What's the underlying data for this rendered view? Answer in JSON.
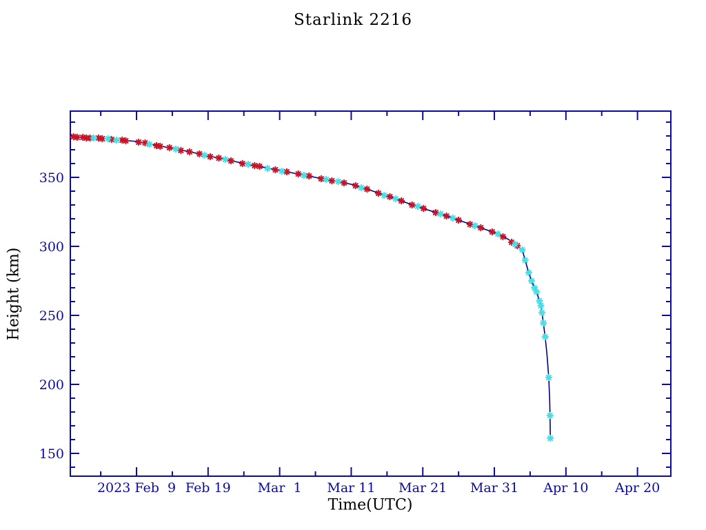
{
  "chart_data": {
    "type": "line",
    "title": "Starlink 2216",
    "xlabel": "Time(UTC)",
    "ylabel": "Height (km)",
    "x_unit": "days since 2023 Feb 9 00:00 UTC",
    "xlim": [
      -9.25,
      74.66
    ],
    "ylim": [
      133.5,
      398
    ],
    "grid": false,
    "legend": "none",
    "x_major_ticks": [
      {
        "value": 0,
        "label": "2023 Feb  9"
      },
      {
        "value": 10,
        "label": "Feb 19"
      },
      {
        "value": 20,
        "label": "Mar  1"
      },
      {
        "value": 30,
        "label": "Mar 11"
      },
      {
        "value": 40,
        "label": "Mar 21"
      },
      {
        "value": 50,
        "label": "Mar 31"
      },
      {
        "value": 60,
        "label": "Apr 10"
      },
      {
        "value": 70,
        "label": "Apr 20"
      }
    ],
    "x_minor_ticks": [
      -5,
      5,
      15,
      25,
      35,
      45,
      55,
      65
    ],
    "y_major_ticks": [
      {
        "value": 150,
        "label": "150"
      },
      {
        "value": 200,
        "label": "200"
      },
      {
        "value": 250,
        "label": "250"
      },
      {
        "value": 300,
        "label": "300"
      },
      {
        "value": 350,
        "label": "350"
      }
    ],
    "y_minor_ticks": [
      140,
      160,
      170,
      180,
      190,
      210,
      220,
      230,
      240,
      260,
      270,
      280,
      290,
      310,
      320,
      330,
      340,
      360,
      370,
      380,
      390
    ],
    "colors": {
      "axis": "#0a0aa0",
      "text": "#0a0aa0",
      "line": "#00007d",
      "red_marker": "#c81328",
      "cyan_marker": "#48dfe8",
      "background": "#ffffff"
    },
    "series": [
      {
        "name": "decay-curve",
        "style": "line",
        "color_key": "line",
        "points": [
          [
            -9.25,
            379.5
          ],
          [
            -7,
            379
          ],
          [
            -4.5,
            378
          ],
          [
            -2,
            377
          ],
          [
            0,
            376
          ],
          [
            2.5,
            373.5
          ],
          [
            5,
            371
          ],
          [
            7.5,
            368.5
          ],
          [
            10,
            365.5
          ],
          [
            12.5,
            363
          ],
          [
            15,
            360
          ],
          [
            17.5,
            357.5
          ],
          [
            20,
            355
          ],
          [
            22.5,
            352.5
          ],
          [
            25,
            350
          ],
          [
            27.5,
            347.5
          ],
          [
            30,
            345
          ],
          [
            32.5,
            341
          ],
          [
            35,
            336.5
          ],
          [
            37.5,
            332
          ],
          [
            40,
            327.5
          ],
          [
            42.5,
            323.5
          ],
          [
            45,
            319
          ],
          [
            47.5,
            314.5
          ],
          [
            50,
            310
          ],
          [
            52,
            305
          ],
          [
            53.9,
            297.5
          ],
          [
            54.3,
            290
          ],
          [
            54.8,
            281
          ],
          [
            55.2,
            275
          ],
          [
            55.6,
            270
          ],
          [
            55.9,
            267
          ],
          [
            56.3,
            260.5
          ],
          [
            56.5,
            257
          ],
          [
            56.65,
            252
          ],
          [
            56.85,
            244.5
          ],
          [
            57.1,
            234.5
          ],
          [
            57.35,
            222
          ],
          [
            57.6,
            205
          ],
          [
            57.72,
            190
          ],
          [
            57.78,
            177.5
          ],
          [
            57.82,
            161
          ]
        ]
      },
      {
        "name": "observations-red",
        "style": "asterisk",
        "color_key": "red_marker",
        "points": [
          [
            -8.8,
            379.5
          ],
          [
            -8.3,
            379
          ],
          [
            -7.5,
            379
          ],
          [
            -7.0,
            378.5
          ],
          [
            -6.5,
            378.5
          ],
          [
            -5.3,
            378.5
          ],
          [
            -4.8,
            378
          ],
          [
            -3.5,
            377.5
          ],
          [
            -2.0,
            377
          ],
          [
            -1.5,
            376.5
          ],
          [
            0.3,
            375.5
          ],
          [
            1.2,
            375
          ],
          [
            2.8,
            373
          ],
          [
            3.3,
            372.5
          ],
          [
            4.6,
            371.5
          ],
          [
            6.2,
            369.5
          ],
          [
            7.4,
            368.5
          ],
          [
            8.8,
            367
          ],
          [
            10.3,
            365
          ],
          [
            11.5,
            364
          ],
          [
            13.2,
            362
          ],
          [
            14.8,
            360
          ],
          [
            16.5,
            358.5
          ],
          [
            17.2,
            358
          ],
          [
            19.4,
            355.5
          ],
          [
            21.0,
            354
          ],
          [
            22.6,
            352.5
          ],
          [
            24.1,
            351
          ],
          [
            25.8,
            349
          ],
          [
            27.3,
            347.5
          ],
          [
            29.0,
            346
          ],
          [
            30.6,
            344
          ],
          [
            32.2,
            341.5
          ],
          [
            33.8,
            338.5
          ],
          [
            35.4,
            336
          ],
          [
            37.0,
            333
          ],
          [
            38.5,
            330
          ],
          [
            40.1,
            327.5
          ],
          [
            41.8,
            324.5
          ],
          [
            43.3,
            322
          ],
          [
            45.0,
            319
          ],
          [
            46.6,
            316
          ],
          [
            48.1,
            313.5
          ],
          [
            49.7,
            310.5
          ],
          [
            51.2,
            307
          ],
          [
            52.4,
            303
          ],
          [
            53.2,
            300.5
          ]
        ]
      },
      {
        "name": "observations-cyan",
        "style": "asterisk",
        "color_key": "cyan_marker",
        "points": [
          [
            -6.0,
            378.5
          ],
          [
            -4.0,
            378
          ],
          [
            -2.8,
            377
          ],
          [
            1.8,
            374
          ],
          [
            5.5,
            370.5
          ],
          [
            9.5,
            366
          ],
          [
            12.4,
            363
          ],
          [
            15.6,
            359.5
          ],
          [
            18.3,
            356.5
          ],
          [
            20.3,
            354.5
          ],
          [
            23.4,
            351.5
          ],
          [
            26.5,
            348.5
          ],
          [
            28.2,
            347
          ],
          [
            31.4,
            342.5
          ],
          [
            34.6,
            337
          ],
          [
            36.2,
            334.5
          ],
          [
            39.3,
            329
          ],
          [
            42.5,
            323.5
          ],
          [
            44.2,
            320.5
          ],
          [
            47.3,
            315
          ],
          [
            50.5,
            309
          ],
          [
            52.9,
            301.5
          ],
          [
            53.9,
            297.5
          ],
          [
            54.3,
            290
          ],
          [
            54.8,
            281
          ],
          [
            55.2,
            275
          ],
          [
            55.6,
            270
          ],
          [
            55.9,
            267
          ],
          [
            56.3,
            260.5
          ],
          [
            56.5,
            257
          ],
          [
            56.65,
            252
          ],
          [
            56.85,
            244.5
          ],
          [
            57.1,
            234.5
          ],
          [
            57.6,
            205
          ],
          [
            57.78,
            177.5
          ],
          [
            57.82,
            161
          ]
        ]
      }
    ]
  }
}
